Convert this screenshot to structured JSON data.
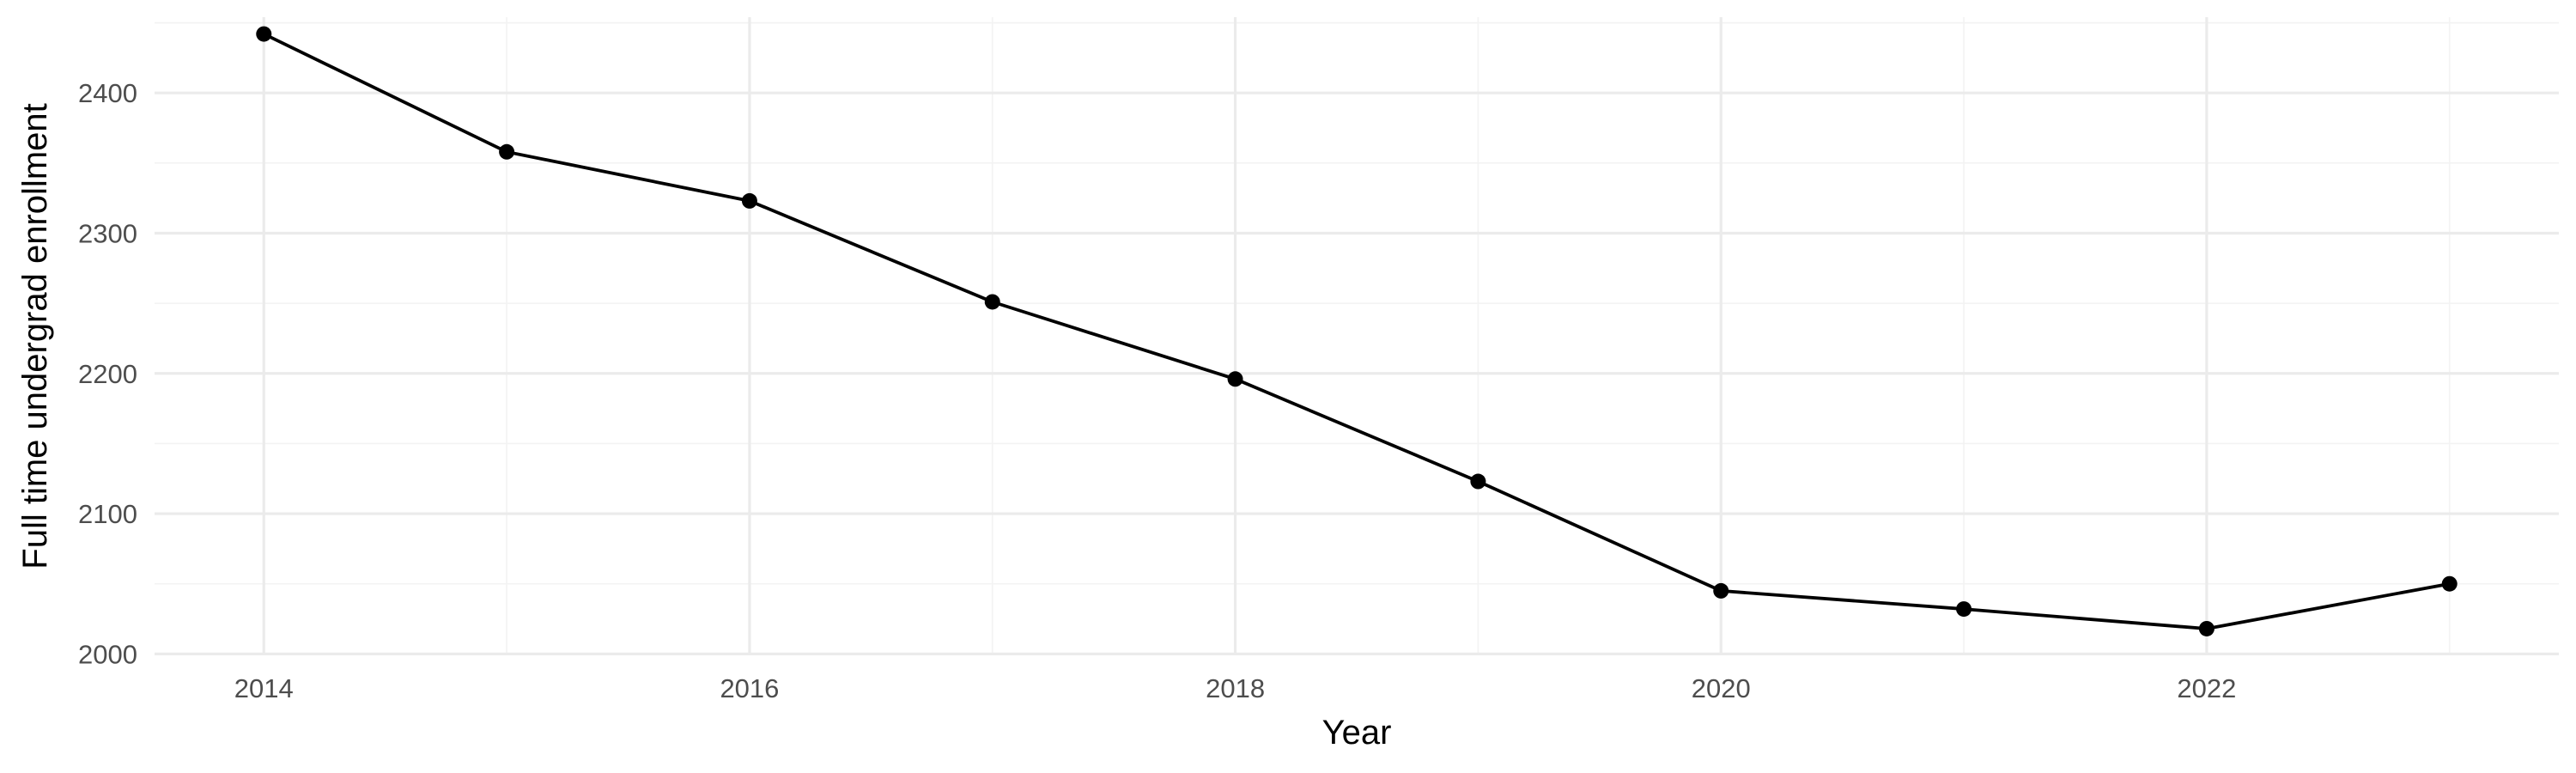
{
  "chart_data": {
    "type": "line",
    "title": "",
    "xlabel": "Year",
    "ylabel": "Full time undergrad enrollment",
    "x": [
      2014,
      2015,
      2016,
      2017,
      2018,
      2019,
      2020,
      2021,
      2022,
      2023
    ],
    "series": [
      {
        "values": [
          2442,
          2358,
          2323,
          2251,
          2196,
          2123,
          2045,
          2032,
          2018,
          2050
        ]
      }
    ],
    "xlim": [
      2013.55,
      2023.45
    ],
    "ylim": [
      1999,
      2454
    ],
    "x_ticks": [
      2014,
      2016,
      2018,
      2020,
      2022
    ],
    "x_tick_labels": [
      "2014",
      "2016",
      "2018",
      "2020",
      "2022"
    ],
    "y_ticks": [
      2000,
      2100,
      2200,
      2300,
      2400
    ],
    "y_tick_labels": [
      "2000",
      "2100",
      "2200",
      "2300",
      "2400"
    ],
    "x_minor_ticks": [
      2015,
      2017,
      2019,
      2021,
      2023
    ],
    "y_minor_ticks": [
      2050,
      2150,
      2250,
      2350,
      2450
    ],
    "grid": true,
    "legend": "none",
    "colors": {
      "line": "#000000",
      "point": "#000000",
      "grid": "#ebebeb",
      "background": "#ffffff"
    }
  }
}
